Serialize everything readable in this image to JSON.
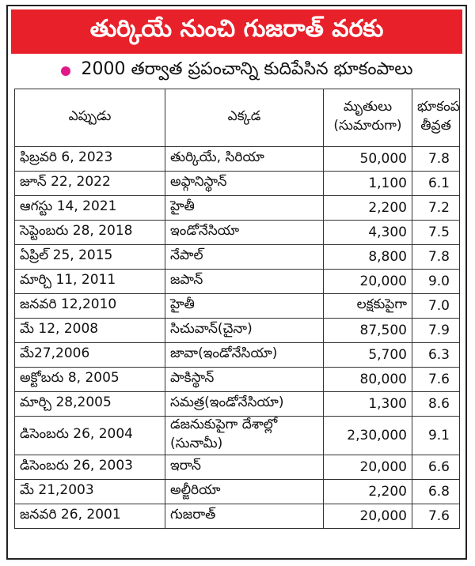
{
  "header": {
    "title": "తుర్కియే నుంచి గుజరాత్ వరకు",
    "subtitle": "2000 తర్వాత ప్రపంచాన్ని కుదిపేసిన భూకంపాలు"
  },
  "table": {
    "columns": [
      "ఎప్పుడు",
      "ఎక్కడ",
      "మృతులు (సుమారుగా)",
      "భూకంప తీవ్రత"
    ],
    "rows": [
      [
        "ఫిబ్రవరి 6, 2023",
        "తుర్కియే, సిరియా",
        "50,000",
        "7.8"
      ],
      [
        "జూన్ 22, 2022",
        "అఫ్గానిస్థాన్",
        "1,100",
        "6.1"
      ],
      [
        "ఆగస్టు 14, 2021",
        "హైతీ",
        "2,200",
        "7.2"
      ],
      [
        "సెప్టెంబరు 28, 2018",
        "ఇండోనేసియా",
        "4,300",
        "7.5"
      ],
      [
        "ఏప్రిల్ 25, 2015",
        "నేపాల్",
        "8,800",
        "7.8"
      ],
      [
        "మార్చి 11, 2011",
        "జపాన్",
        "20,000",
        "9.0"
      ],
      [
        "జనవరి 12,2010",
        "హైతీ",
        "లక్షకుపైగా",
        "7.0"
      ],
      [
        "మే 12, 2008",
        "సిచువాన్(చైనా)",
        "87,500",
        "7.9"
      ],
      [
        "మే27,2006",
        "జావా(ఇండోనేసియా)",
        "5,700",
        "6.3"
      ],
      [
        "అక్టోబరు 8, 2005",
        "పాకిస్థాన్",
        "80,000",
        "7.6"
      ],
      [
        "మార్చి 28,2005",
        "సమత్ర(ఇండోనేసియా)",
        "1,300",
        "8.6"
      ],
      [
        "డిసెంబరు 26, 2004",
        "డజనుకుపైగా దేశాల్లో (సునామీ)",
        "2,30,000",
        "9.1"
      ],
      [
        "డిసెంబరు 26, 2003",
        "ఇరాన్",
        "20,000",
        "6.6"
      ],
      [
        "మే 21,2003",
        "అల్జీరియా",
        "2,200",
        "6.8"
      ],
      [
        "జనవరి 26, 2001",
        "గుజరాత్",
        "20,000",
        "7.6"
      ]
    ]
  }
}
